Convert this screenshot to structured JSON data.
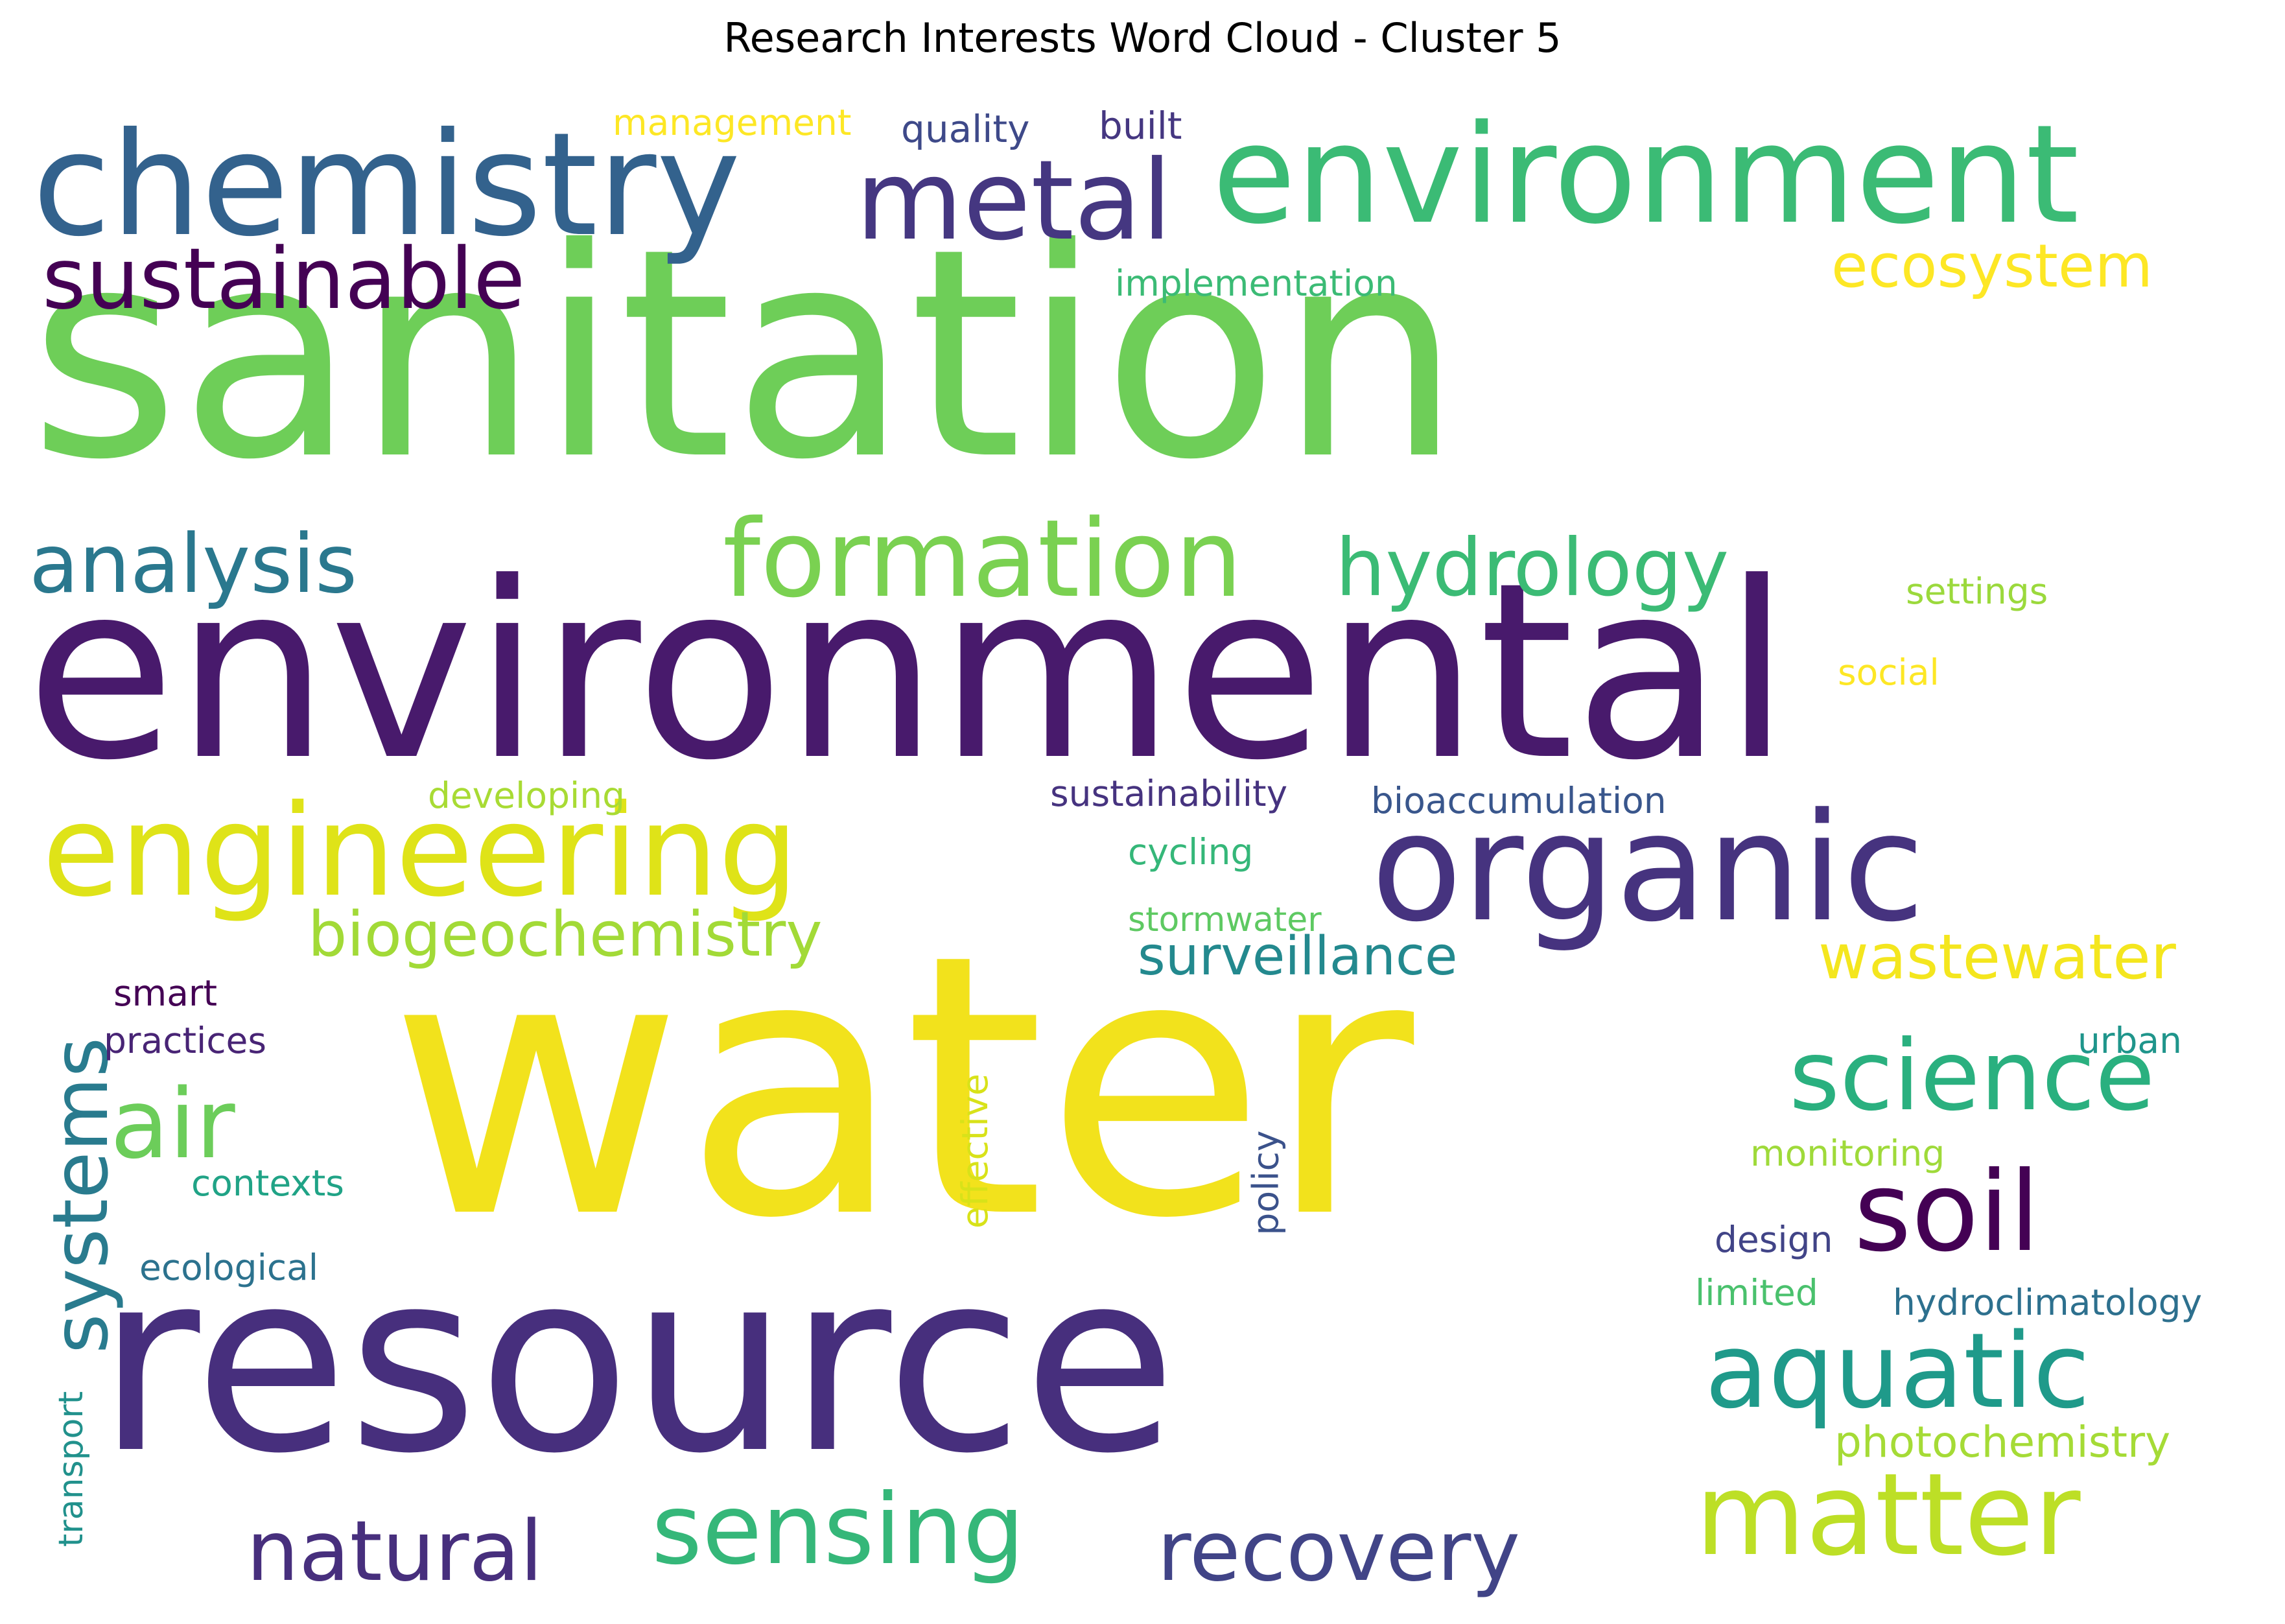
{
  "title": "Research Interests Word Cloud - Cluster 5",
  "palette": [
    "#440154",
    "#482878",
    "#3e4989",
    "#31688e",
    "#26828e",
    "#1f9e89",
    "#35b779",
    "#6ece58",
    "#b5de2b",
    "#fde725"
  ],
  "words": [
    {
      "text": "sanitation",
      "color": "#6ece58"
    },
    {
      "text": "environmental",
      "color": "#481a6c"
    },
    {
      "text": "water",
      "color": "#f2e21c"
    },
    {
      "text": "resource",
      "color": "#472f7d"
    },
    {
      "text": "environment",
      "color": "#3bbb75"
    },
    {
      "text": "chemistry",
      "color": "#33628d"
    },
    {
      "text": "organic",
      "color": "#46337f"
    },
    {
      "text": "engineering",
      "color": "#dfe318"
    },
    {
      "text": "formation",
      "color": "#7ad151"
    },
    {
      "text": "metal",
      "color": "#453781"
    },
    {
      "text": "sustainable",
      "color": "#440154"
    },
    {
      "text": "hydrology",
      "color": "#3bbb75"
    },
    {
      "text": "analysis",
      "color": "#2a788e"
    },
    {
      "text": "science",
      "color": "#2ab07f"
    },
    {
      "text": "soil",
      "color": "#440154"
    },
    {
      "text": "aquatic",
      "color": "#1f9a8a"
    },
    {
      "text": "matter",
      "color": "#bddf26"
    },
    {
      "text": "sensing",
      "color": "#35b779"
    },
    {
      "text": "recovery",
      "color": "#414487"
    },
    {
      "text": "natural",
      "color": "#472f7d"
    },
    {
      "text": "air",
      "color": "#6ccd5a"
    },
    {
      "text": "systems",
      "color": "#297b8e"
    },
    {
      "text": "ecosystem",
      "color": "#fde725"
    },
    {
      "text": "biogeochemistry",
      "color": "#a2da37"
    },
    {
      "text": "surveillance",
      "color": "#23898e"
    },
    {
      "text": "wastewater",
      "color": "#f4e61e"
    },
    {
      "text": "management",
      "color": "#fde725"
    },
    {
      "text": "quality",
      "color": "#3e4989"
    },
    {
      "text": "built",
      "color": "#453781"
    },
    {
      "text": "implementation",
      "color": "#3bbb75"
    },
    {
      "text": "settings",
      "color": "#9bd93c"
    },
    {
      "text": "social",
      "color": "#fde725"
    },
    {
      "text": "developing",
      "color": "#a8db34"
    },
    {
      "text": "sustainability",
      "color": "#46337f"
    },
    {
      "text": "bioaccumulation",
      "color": "#39568c"
    },
    {
      "text": "cycling",
      "color": "#35b779"
    },
    {
      "text": "stormwater",
      "color": "#5ec962"
    },
    {
      "text": "smart",
      "color": "#440154"
    },
    {
      "text": "practices",
      "color": "#482475"
    },
    {
      "text": "urban",
      "color": "#1f958b"
    },
    {
      "text": "monitoring",
      "color": "#9fda3a"
    },
    {
      "text": "effective",
      "color": "#d8e219"
    },
    {
      "text": "policy",
      "color": "#3b528b"
    },
    {
      "text": "contexts",
      "color": "#20a386"
    },
    {
      "text": "ecological",
      "color": "#2c728e"
    },
    {
      "text": "design",
      "color": "#414487"
    },
    {
      "text": "limited",
      "color": "#4ac16d"
    },
    {
      "text": "hydroclimatology",
      "color": "#2d708e"
    },
    {
      "text": "photochemistry",
      "color": "#a5db36"
    },
    {
      "text": "transport",
      "color": "#21918c"
    }
  ]
}
